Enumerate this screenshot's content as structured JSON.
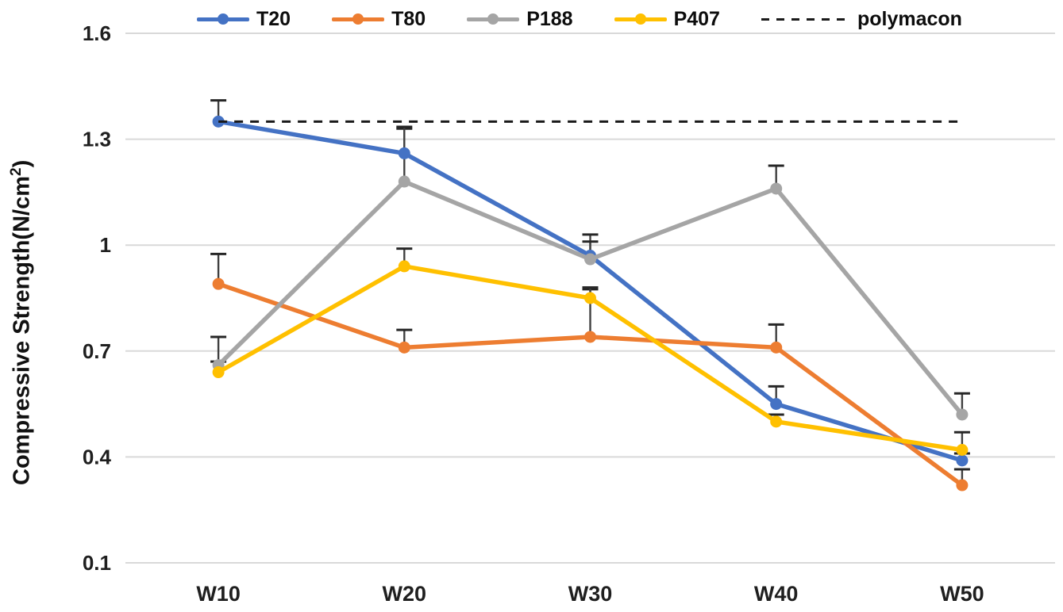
{
  "chart_data": {
    "type": "line",
    "title": "",
    "xlabel": "",
    "ylabel": "Compressive Strength(N/cm²)",
    "categories": [
      "W10",
      "W20",
      "W30",
      "W40",
      "W50"
    ],
    "series": [
      {
        "name": "T20",
        "color": "#4472C4",
        "values": [
          1.35,
          1.26,
          0.97,
          0.55,
          0.39
        ],
        "errors_plus": [
          0.06,
          0.07,
          0.06,
          0.05,
          0.02
        ]
      },
      {
        "name": "T80",
        "color": "#ED7D31",
        "values": [
          0.89,
          0.71,
          0.74,
          0.71,
          0.32
        ],
        "errors_plus": [
          0.085,
          0.05,
          0.135,
          0.065,
          0.045
        ]
      },
      {
        "name": "P188",
        "color": "#A5A5A5",
        "values": [
          0.66,
          1.18,
          0.96,
          1.16,
          0.52
        ],
        "errors_plus": [
          0.08,
          0.155,
          0.05,
          0.065,
          0.06
        ]
      },
      {
        "name": "P407",
        "color": "#FFC000",
        "values": [
          0.64,
          0.94,
          0.85,
          0.5,
          0.42
        ],
        "errors_plus": [
          0.03,
          0.05,
          0.03,
          0.02,
          0.05
        ]
      }
    ],
    "reference_line": {
      "name": "polymacon",
      "value": 1.35,
      "style": "dashed",
      "color": "#1A1A1A"
    },
    "yticks": [
      1.6,
      1.3,
      1,
      0.7,
      0.4,
      0.1
    ],
    "ytick_labels": [
      "1.6",
      "1.3",
      "1",
      "0.7",
      "0.4",
      "0.1"
    ],
    "ylim": [
      0.1,
      1.6
    ],
    "grid": "horizontal",
    "gridline_color": "#D9D9D9",
    "error_bar_color": "#404040",
    "error_bar_direction": "plus",
    "legend_position": "top",
    "marker": "circle"
  },
  "axes": {
    "ylabel_pre": "Compressive Strength(N/cm",
    "ylabel_sup": "2",
    "ylabel_post": ")"
  }
}
